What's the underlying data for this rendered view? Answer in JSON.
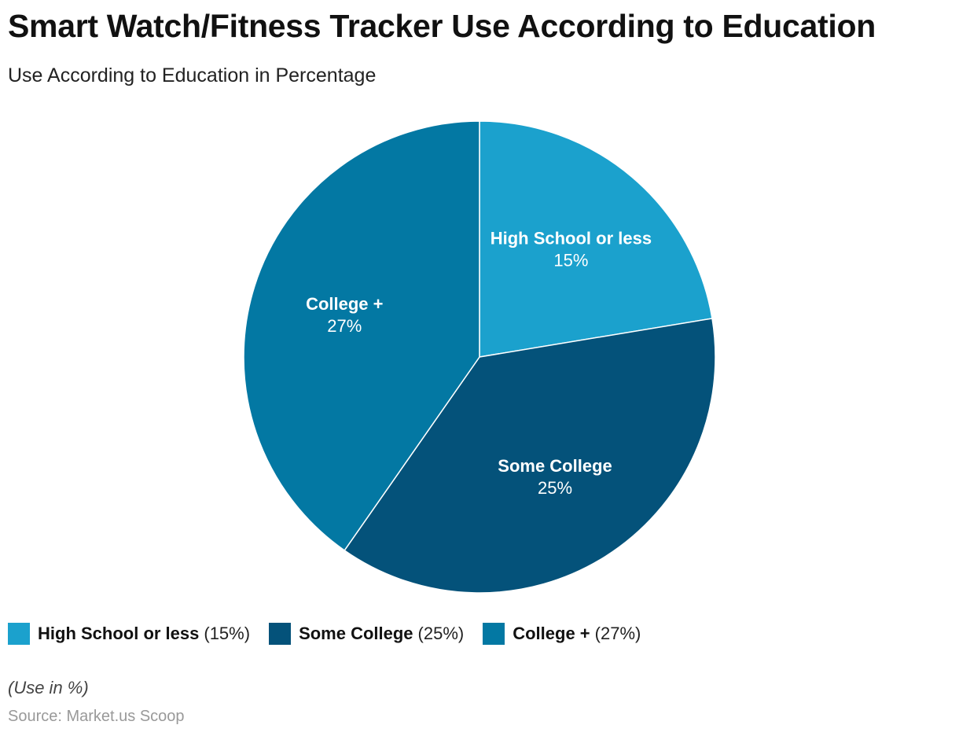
{
  "header": {
    "title": "Smart Watch/Fitness Tracker Use According to Education",
    "subtitle": "Use According to Education in Percentage"
  },
  "chart_data": {
    "type": "pie",
    "categories": [
      "High School or less",
      "Some College",
      "College +"
    ],
    "values": [
      15,
      25,
      27
    ],
    "value_labels": [
      "15%",
      "25%",
      "27%"
    ],
    "legend_values": [
      "(15%)",
      "(25%)",
      "(27%)"
    ],
    "colors": [
      "#1ba1cd",
      "#04527a",
      "#0378a3"
    ],
    "legend_placement": "bottom-left"
  },
  "footer": {
    "note": "(Use in %)",
    "source": "Source: Market.us Scoop"
  }
}
